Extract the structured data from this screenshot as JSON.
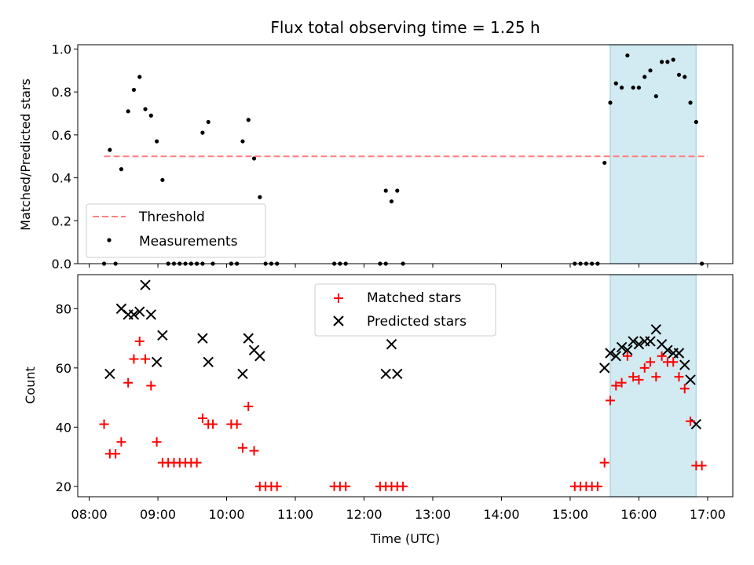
{
  "title": "Flux total observing time = 1.25 h",
  "colors": {
    "threshold": "#ff7f7f",
    "measurement": "#000000",
    "matched": "#ff0000",
    "predicted": "#000000",
    "highlight": "#add8e6"
  },
  "chart_data": [
    {
      "type": "scatter",
      "panel": "top",
      "ylabel": "Matched/Predicted stars",
      "xlabel": "",
      "xlim": [
        "07:50",
        "17:22"
      ],
      "ylim": [
        0,
        1.02
      ],
      "yticks": [
        "0.0",
        "0.2",
        "0.4",
        "0.6",
        "0.8",
        "1.0"
      ],
      "yticks_values": [
        0,
        0.2,
        0.4,
        0.6,
        0.8,
        1.0
      ],
      "xticks": [
        "08:00",
        "09:00",
        "10:00",
        "11:00",
        "12:00",
        "13:00",
        "14:00",
        "15:00",
        "16:00",
        "17:00"
      ],
      "shaded_span": [
        "15:35",
        "16:50"
      ],
      "threshold": {
        "name": "Threshold",
        "y": 0.5,
        "x_range": [
          "08:13",
          "17:00"
        ]
      },
      "legend_position": "lower-left",
      "series": [
        {
          "name": "Measurements",
          "points": [
            [
              "08:13",
              0.0
            ],
            [
              "08:18",
              0.53
            ],
            [
              "08:23",
              0.0
            ],
            [
              "08:28",
              0.44
            ],
            [
              "08:34",
              0.71
            ],
            [
              "08:39",
              0.81
            ],
            [
              "08:44",
              0.87
            ],
            [
              "08:49",
              0.72
            ],
            [
              "08:54",
              0.69
            ],
            [
              "08:59",
              0.57
            ],
            [
              "09:04",
              0.39
            ],
            [
              "09:09",
              0.0
            ],
            [
              "09:14",
              0.0
            ],
            [
              "09:19",
              0.0
            ],
            [
              "09:24",
              0.0
            ],
            [
              "09:29",
              0.0
            ],
            [
              "09:34",
              0.0
            ],
            [
              "09:39",
              0.0
            ],
            [
              "09:39",
              0.61
            ],
            [
              "09:44",
              0.66
            ],
            [
              "09:48",
              0.0
            ],
            [
              "10:04",
              0.0
            ],
            [
              "10:09",
              0.0
            ],
            [
              "10:14",
              0.57
            ],
            [
              "10:19",
              0.67
            ],
            [
              "10:24",
              0.49
            ],
            [
              "10:29",
              0.31
            ],
            [
              "10:34",
              0.0
            ],
            [
              "10:39",
              0.0
            ],
            [
              "10:44",
              0.0
            ],
            [
              "11:34",
              0.0
            ],
            [
              "11:39",
              0.0
            ],
            [
              "11:44",
              0.0
            ],
            [
              "12:14",
              0.0
            ],
            [
              "12:19",
              0.0
            ],
            [
              "12:19",
              0.34
            ],
            [
              "12:24",
              0.29
            ],
            [
              "12:29",
              0.34
            ],
            [
              "12:34",
              0.0
            ],
            [
              "15:04",
              0.0
            ],
            [
              "15:09",
              0.0
            ],
            [
              "15:14",
              0.0
            ],
            [
              "15:19",
              0.0
            ],
            [
              "15:24",
              0.0
            ],
            [
              "15:30",
              0.47
            ],
            [
              "15:35",
              0.75
            ],
            [
              "15:40",
              0.84
            ],
            [
              "15:45",
              0.82
            ],
            [
              "15:50",
              0.97
            ],
            [
              "15:55",
              0.82
            ],
            [
              "16:00",
              0.82
            ],
            [
              "16:05",
              0.87
            ],
            [
              "16:10",
              0.9
            ],
            [
              "16:15",
              0.78
            ],
            [
              "16:20",
              0.94
            ],
            [
              "16:25",
              0.94
            ],
            [
              "16:30",
              0.95
            ],
            [
              "16:35",
              0.88
            ],
            [
              "16:40",
              0.87
            ],
            [
              "16:45",
              0.75
            ],
            [
              "16:50",
              0.66
            ],
            [
              "16:55",
              0.0
            ]
          ]
        }
      ]
    },
    {
      "type": "scatter",
      "panel": "bottom",
      "ylabel": "Count",
      "xlabel": "Time (UTC)",
      "xlim": [
        "07:50",
        "17:22"
      ],
      "ylim": [
        16.5,
        91.5
      ],
      "yticks": [
        "20",
        "40",
        "60",
        "80"
      ],
      "yticks_values": [
        20,
        40,
        60,
        80
      ],
      "xticks": [
        "08:00",
        "09:00",
        "10:00",
        "11:00",
        "12:00",
        "13:00",
        "14:00",
        "15:00",
        "16:00",
        "17:00"
      ],
      "shaded_span": [
        "15:35",
        "16:50"
      ],
      "legend_position": "top-center",
      "series": [
        {
          "name": "Matched stars",
          "marker": "plus",
          "points": [
            [
              "08:13",
              41
            ],
            [
              "08:18",
              31
            ],
            [
              "08:23",
              31
            ],
            [
              "08:28",
              35
            ],
            [
              "08:34",
              55
            ],
            [
              "08:39",
              63
            ],
            [
              "08:44",
              69
            ],
            [
              "08:49",
              63
            ],
            [
              "08:54",
              54
            ],
            [
              "08:59",
              35
            ],
            [
              "09:04",
              28
            ],
            [
              "09:09",
              28
            ],
            [
              "09:14",
              28
            ],
            [
              "09:19",
              28
            ],
            [
              "09:24",
              28
            ],
            [
              "09:29",
              28
            ],
            [
              "09:34",
              28
            ],
            [
              "09:39",
              43
            ],
            [
              "09:44",
              41
            ],
            [
              "09:48",
              41
            ],
            [
              "10:04",
              41
            ],
            [
              "10:09",
              41
            ],
            [
              "10:14",
              33
            ],
            [
              "10:19",
              47
            ],
            [
              "10:24",
              32
            ],
            [
              "10:29",
              20
            ],
            [
              "10:34",
              20
            ],
            [
              "10:39",
              20
            ],
            [
              "10:44",
              20
            ],
            [
              "11:34",
              20
            ],
            [
              "11:39",
              20
            ],
            [
              "11:44",
              20
            ],
            [
              "12:14",
              20
            ],
            [
              "12:19",
              20
            ],
            [
              "12:24",
              20
            ],
            [
              "12:29",
              20
            ],
            [
              "12:34",
              20
            ],
            [
              "15:04",
              20
            ],
            [
              "15:09",
              20
            ],
            [
              "15:14",
              20
            ],
            [
              "15:19",
              20
            ],
            [
              "15:24",
              20
            ],
            [
              "15:30",
              28
            ],
            [
              "15:35",
              49
            ],
            [
              "15:40",
              54
            ],
            [
              "15:45",
              55
            ],
            [
              "15:50",
              64
            ],
            [
              "15:55",
              57
            ],
            [
              "16:00",
              56
            ],
            [
              "16:05",
              60
            ],
            [
              "16:10",
              62
            ],
            [
              "16:15",
              57
            ],
            [
              "16:20",
              64
            ],
            [
              "16:25",
              62
            ],
            [
              "16:30",
              62
            ],
            [
              "16:35",
              57
            ],
            [
              "16:40",
              53
            ],
            [
              "16:45",
              42
            ],
            [
              "16:50",
              27
            ],
            [
              "16:55",
              27
            ]
          ]
        },
        {
          "name": "Predicted stars",
          "marker": "x",
          "points": [
            [
              "08:18",
              58
            ],
            [
              "08:28",
              80
            ],
            [
              "08:34",
              78
            ],
            [
              "08:39",
              78
            ],
            [
              "08:44",
              79
            ],
            [
              "08:49",
              88
            ],
            [
              "08:54",
              78
            ],
            [
              "08:59",
              62
            ],
            [
              "09:04",
              71
            ],
            [
              "09:39",
              70
            ],
            [
              "09:44",
              62
            ],
            [
              "10:14",
              58
            ],
            [
              "10:19",
              70
            ],
            [
              "10:24",
              66
            ],
            [
              "10:29",
              64
            ],
            [
              "12:19",
              58
            ],
            [
              "12:24",
              68
            ],
            [
              "12:29",
              58
            ],
            [
              "15:30",
              60
            ],
            [
              "15:35",
              65
            ],
            [
              "15:40",
              64
            ],
            [
              "15:45",
              67
            ],
            [
              "15:50",
              66
            ],
            [
              "15:55",
              69
            ],
            [
              "16:00",
              68
            ],
            [
              "16:05",
              69
            ],
            [
              "16:10",
              69
            ],
            [
              "16:15",
              73
            ],
            [
              "16:20",
              68
            ],
            [
              "16:25",
              66
            ],
            [
              "16:30",
              65
            ],
            [
              "16:35",
              65
            ],
            [
              "16:40",
              61
            ],
            [
              "16:45",
              56
            ],
            [
              "16:50",
              41
            ]
          ]
        }
      ]
    }
  ]
}
